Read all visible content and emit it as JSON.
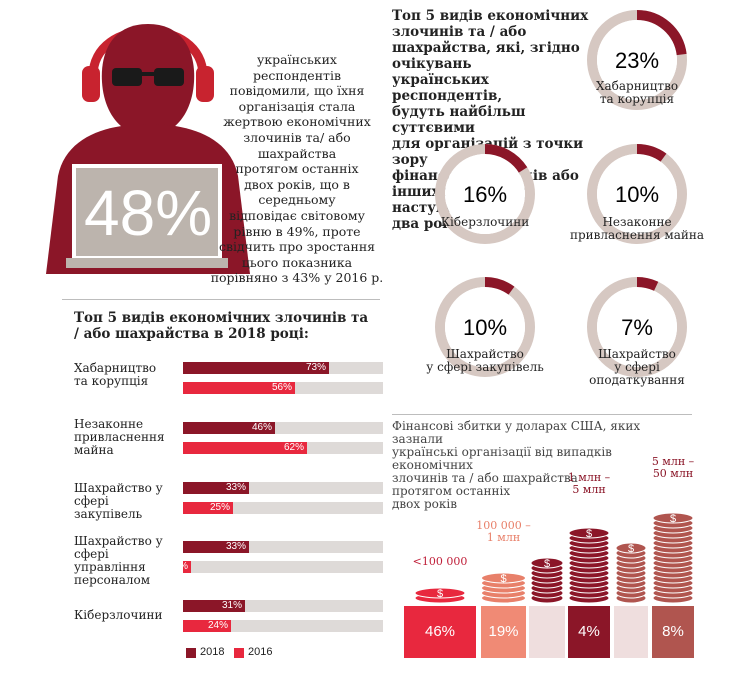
{
  "colors": {
    "dark_red": "#8b1628",
    "bright_red": "#e8283e",
    "track": "#dedad8",
    "gray": "#bcb4ad",
    "salmon": "#e8806a",
    "brown": "#b0554f",
    "light_pink": "#efdede",
    "donut_bg": "#d6c8c2"
  },
  "hero": {
    "percent": "48%",
    "text": "українських\nреспондентів\nповідомили, що їхня\nорганізація стала\nжертвою економічних\nзлочинів та/ або\nшахрайства\nпротягом останніх\nдвох років, що в\nсередньому\nвідповідає світовому\nрівню в 49%, проте\nсвідчить про зростання\nцього показника\nпорівняно з 43% у 2016 р."
  },
  "top5_heading": "Топ 5 видів економічних\nзлочинів та / або\nшахрайства, які, згідно очікувань\nукраїнських респондентів,\nбудуть найбільш суттєвими\nдля організацій з точки зору\nфінансових збитків або\nінших наслідків у наступні\nдва роки",
  "donuts": [
    {
      "label": "Хабарництво\nта корупція",
      "value": 23,
      "text": "23%"
    },
    {
      "label": "Кіберзлочини",
      "value": 16,
      "text": "16%"
    },
    {
      "label": "Незаконне\nпривласнення майна",
      "value": 10,
      "text": "10%"
    },
    {
      "label": "Шахрайство\nу сфері закупівель",
      "value": 10,
      "text": "10%"
    },
    {
      "label": "Шахрайство\nу сфері оподаткування",
      "value": 7,
      "text": "7%"
    }
  ],
  "chart_data": {
    "type": "bar",
    "title": "Топ 5 видів економічних злочинів та / або шахрайства в 2018 році:",
    "categories": [
      "Хабарництво\nта корупція",
      "Незаконне\nпривласнення\nмайна",
      "Шахрайство у\nсфері закупівель",
      "Шахрайство у\nсфері управління\nперсоналом",
      "Кіберзлочини"
    ],
    "series": [
      {
        "name": "2018",
        "values": [
          73,
          46,
          33,
          33,
          31
        ],
        "labels": [
          "73%",
          "46%",
          "33%",
          "33%",
          "31%"
        ]
      },
      {
        "name": "2016",
        "values": [
          56,
          62,
          25,
          4,
          24
        ],
        "labels": [
          "56%",
          "62%",
          "25%",
          "4%",
          "24%"
        ]
      }
    ],
    "ylim": [
      0,
      100
    ],
    "legend": "bottom-left"
  },
  "losses": {
    "heading": "Фінансові збитки у доларах США, яких зазнали\nукраїнські організації від випадків економічних\nзлочинів та / або шахрайства\nпротягом останніх\nдвох років",
    "columns": [
      {
        "label": "<100 000",
        "value": "46%"
      },
      {
        "label": "100 000 –\n1 млн",
        "value": "19%"
      },
      {
        "label": "",
        "value": ""
      },
      {
        "label": "1 млн –\n5 млн",
        "value": "4%"
      },
      {
        "label": "",
        "value": ""
      },
      {
        "label": "5 млн –\n50 млн",
        "value": "8%"
      }
    ],
    "coin_symbol": "$"
  }
}
